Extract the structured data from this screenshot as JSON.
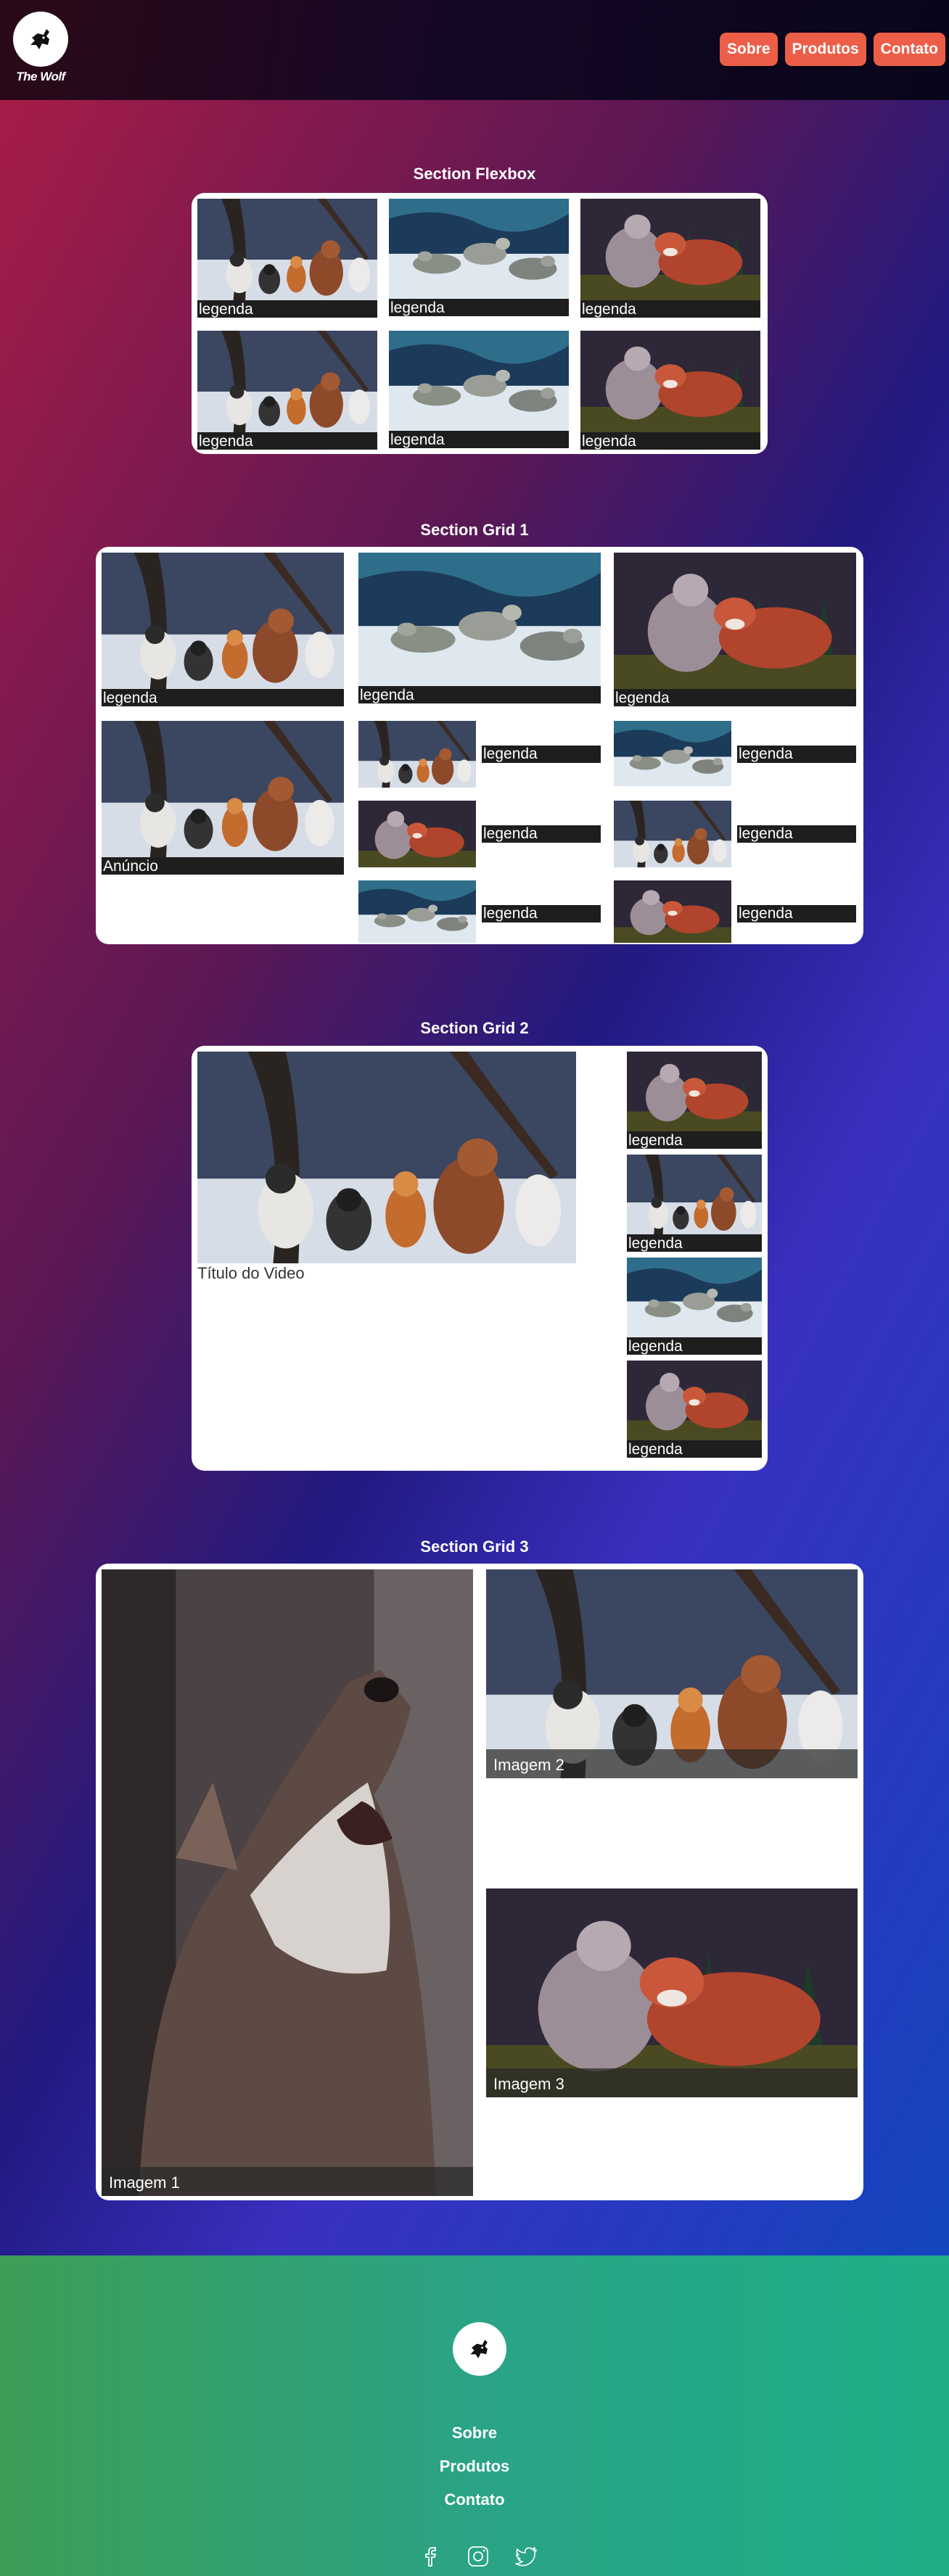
{
  "header": {
    "logo_text": "The Wolf",
    "nav": [
      "Sobre",
      "Produtos",
      "Contato"
    ],
    "accent_color": "#ec5e48"
  },
  "flexbox": {
    "title": "Section Flexbox",
    "captions": [
      "legenda",
      "legenda",
      "legenda",
      "legenda",
      "legenda",
      "legenda"
    ]
  },
  "grid1": {
    "title": "Section Grid 1",
    "top_captions": [
      "legenda",
      "legenda",
      "legenda"
    ],
    "ad_caption": "Anúncio",
    "side_captions": [
      "legenda",
      "legenda",
      "legenda",
      "legenda",
      "legenda",
      "legenda"
    ]
  },
  "grid2": {
    "title": "Section Grid 2",
    "video_title": "Título do Video",
    "captions": [
      "legenda",
      "legenda",
      "legenda",
      "legenda"
    ]
  },
  "grid3": {
    "title": "Section Grid 3",
    "captions": [
      "Imagem 1",
      "Imagem 2",
      "Imagem 3"
    ]
  },
  "footer": {
    "links": [
      "Sobre",
      "Produtos",
      "Contato"
    ],
    "social_icons": [
      "facebook-icon",
      "instagram-icon",
      "twitter-icon"
    ]
  }
}
